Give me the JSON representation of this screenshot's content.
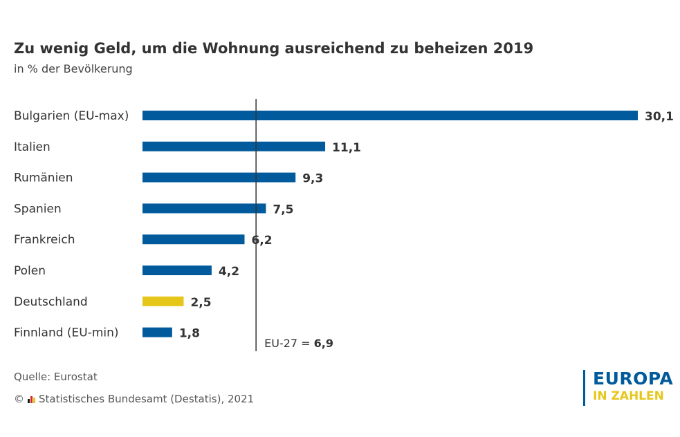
{
  "header": {
    "title": "Zu wenig Geld, um die Wohnung ausreichend zu beheizen 2019",
    "subtitle": "in % der Bevölkerung"
  },
  "colors": {
    "bar_default": "#005a9b",
    "bar_highlight": "#e6c619",
    "text": "#333333"
  },
  "chart_data": {
    "type": "bar",
    "orientation": "horizontal",
    "title": "Zu wenig Geld, um die Wohnung ausreichend zu beheizen 2019",
    "subtitle": "in % der Bevölkerung",
    "categories": [
      "Bulgarien (EU-max)",
      "Italien",
      "Rumänien",
      "Spanien",
      "Frankreich",
      "Polen",
      "Deutschland",
      "Finnland (EU-min)"
    ],
    "values": [
      30.1,
      11.1,
      9.3,
      7.5,
      6.2,
      4.2,
      2.5,
      1.8
    ],
    "value_labels": [
      "30,1",
      "11,1",
      "9,3",
      "7,5",
      "6,2",
      "4,2",
      "2,5",
      "1,8"
    ],
    "highlight_category": "Deutschland",
    "xlim": [
      0,
      30.1
    ],
    "grid": false,
    "reference_line": {
      "value": 6.9,
      "label_prefix": "EU-27 = ",
      "label_value": "6,9"
    }
  },
  "footer": {
    "source": "Quelle: Eurostat",
    "copyright_symbol": "©",
    "copyright_text": "Statistisches Bundesamt (Destatis), 2021",
    "brand_line1": "EUROPA",
    "brand_line2": "IN ZAHLEN"
  }
}
